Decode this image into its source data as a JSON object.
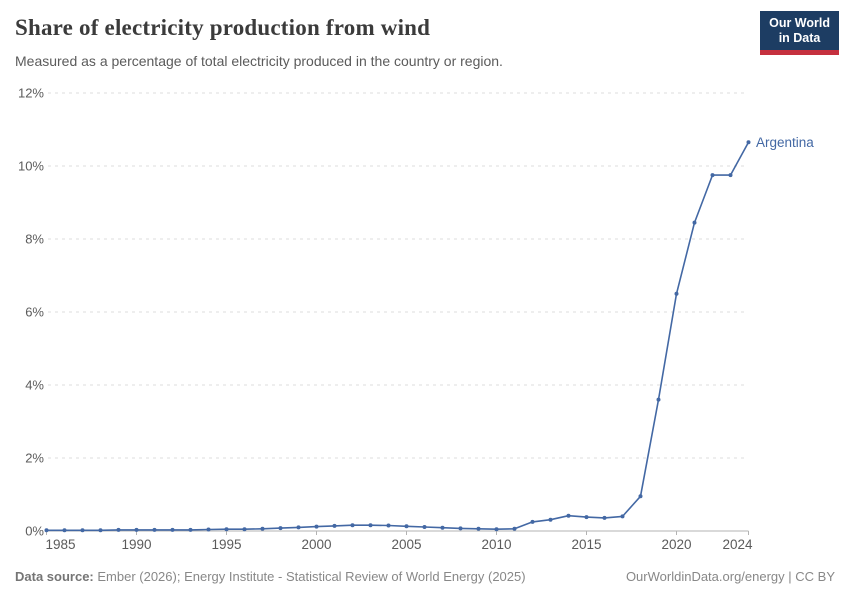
{
  "header": {
    "title": "Share of electricity production from wind",
    "subtitle": "Measured as a percentage of total electricity produced in the country or region.",
    "logo_line1": "Our World",
    "logo_line2": "in Data",
    "logo_bg_color": "#1d3d63",
    "logo_accent_color": "#c5303e"
  },
  "footer": {
    "source_label": "Data source:",
    "source_text": " Ember (2026); Energy Institute - Statistical Review of World Energy (2025)",
    "credit": "OurWorldinData.org/energy | CC BY"
  },
  "chart_data": {
    "type": "line",
    "title": "Share of electricity production from wind",
    "subtitle": "Measured as a percentage of total electricity produced in the country or region.",
    "xlabel": "",
    "ylabel": "",
    "xlim": [
      1985,
      2024
    ],
    "ylim": [
      0,
      12
    ],
    "grid": "horizontal-dashed",
    "x_ticks": [
      1985,
      1990,
      1995,
      2000,
      2005,
      2010,
      2015,
      2020,
      2024
    ],
    "y_ticks": [
      0,
      2,
      4,
      6,
      8,
      10,
      12
    ],
    "y_tick_suffix": "%",
    "legend_position": "end-of-line-label",
    "series": [
      {
        "name": "Argentina",
        "color": "#4368a4",
        "x": [
          1985,
          1986,
          1987,
          1988,
          1989,
          1990,
          1991,
          1992,
          1993,
          1994,
          1995,
          1996,
          1997,
          1998,
          1999,
          2000,
          2001,
          2002,
          2003,
          2004,
          2005,
          2006,
          2007,
          2008,
          2009,
          2010,
          2011,
          2012,
          2013,
          2014,
          2015,
          2016,
          2017,
          2018,
          2019,
          2020,
          2021,
          2022,
          2023,
          2024
        ],
        "values": [
          0.02,
          0.02,
          0.02,
          0.02,
          0.03,
          0.03,
          0.03,
          0.03,
          0.03,
          0.04,
          0.05,
          0.05,
          0.06,
          0.08,
          0.1,
          0.12,
          0.14,
          0.16,
          0.16,
          0.15,
          0.13,
          0.11,
          0.09,
          0.07,
          0.06,
          0.05,
          0.06,
          0.25,
          0.31,
          0.42,
          0.38,
          0.36,
          0.4,
          0.95,
          3.6,
          6.5,
          8.45,
          9.75,
          9.75,
          10.65
        ]
      }
    ],
    "colors": {
      "gridline": "#dcdcdc",
      "axis_line": "#b3b3b3",
      "tick_mark": "#b3b3b3",
      "tick_label": "#5b5b5b"
    }
  }
}
